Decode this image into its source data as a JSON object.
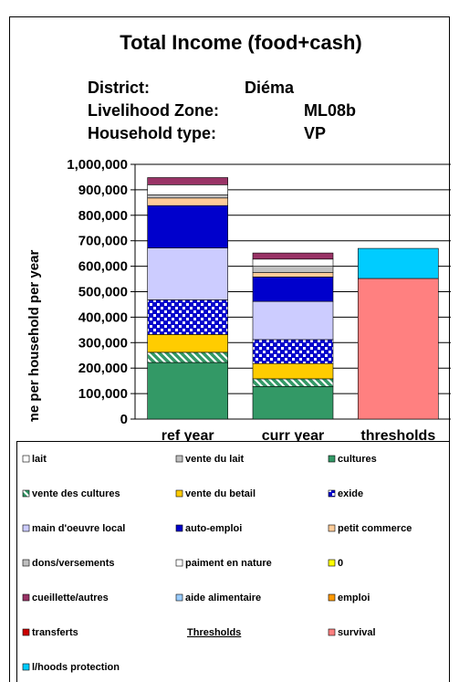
{
  "chart_data": {
    "type": "stacked_bar",
    "title": "Total Income (food+cash)",
    "info": [
      {
        "label": "District:",
        "value": "Diéma"
      },
      {
        "label": "Livelihood Zone:",
        "value": "ML08b"
      },
      {
        "label": "Household type:",
        "value": "VP"
      }
    ],
    "y_label": "Income per household per year",
    "categories": [
      "ref year",
      "curr year",
      "thresholds"
    ],
    "ylim": [
      0,
      1000000
    ],
    "yticks": [
      0,
      {
        "value": 100000,
        "label": "100,000"
      },
      {
        "value": 200000,
        "label": "200,000"
      },
      {
        "value": 300000,
        "label": "300,000"
      },
      {
        "value": 400000,
        "label": "400,000"
      },
      {
        "value": 500000,
        "label": "500,000"
      },
      {
        "value": 600000,
        "label": "600,000"
      },
      {
        "value": 700000,
        "label": "700,000"
      },
      {
        "value": 800000,
        "label": "800,000"
      },
      {
        "value": 900000,
        "label": "900,000"
      },
      {
        "value": 1000000,
        "label": "1,000,000"
      }
    ],
    "grid": true,
    "legend_heading": "Thresholds",
    "series": [
      {
        "name": "lait",
        "color": "#ffffff",
        "values": [
          0,
          0,
          0
        ]
      },
      {
        "name": "vente du lait",
        "color": "#c0c0c0",
        "values": [
          0,
          0,
          0
        ]
      },
      {
        "name": "cultures",
        "color": "#339966",
        "values": [
          222000,
          128000,
          0
        ]
      },
      {
        "name": "vente des cultures",
        "color": "#339966",
        "pattern": "diagonal",
        "values": [
          40000,
          30000,
          0
        ]
      },
      {
        "name": "vente du betail",
        "color": "#ffcc00",
        "values": [
          70000,
          60000,
          0
        ]
      },
      {
        "name": "exide",
        "color": "#0000cc",
        "pattern": "grid",
        "values": [
          136000,
          94000,
          0
        ]
      },
      {
        "name": "main d'oeuvre local",
        "color": "#ccccff",
        "values": [
          204000,
          150000,
          0
        ]
      },
      {
        "name": "auto-emploi",
        "color": "#0000cc",
        "values": [
          166000,
          96000,
          0
        ]
      },
      {
        "name": "petit commerce",
        "color": "#ffcc99",
        "values": [
          30000,
          17000,
          0
        ]
      },
      {
        "name": "dons/versements",
        "color": "#c0c0c0",
        "values": [
          12000,
          25000,
          0
        ]
      },
      {
        "name": "paiment en nature",
        "color": "#ffffff",
        "values": [
          40000,
          28000,
          0
        ]
      },
      {
        "name": "0",
        "color": "#ffff00",
        "values": [
          0,
          0,
          0
        ]
      },
      {
        "name": "cueillette/autres",
        "color": "#993366",
        "values": [
          28000,
          24000,
          0
        ]
      },
      {
        "name": "aide alimentaire",
        "color": "#99ccff",
        "values": [
          0,
          0,
          0
        ]
      },
      {
        "name": "emploi",
        "color": "#ff9900",
        "values": [
          0,
          0,
          0
        ]
      },
      {
        "name": "transferts",
        "color": "#cc0000",
        "values": [
          0,
          0,
          0
        ]
      },
      {
        "name": "survival",
        "color": "#ff8080",
        "values": [
          0,
          0,
          552000
        ]
      },
      {
        "name": "l/hoods protection",
        "color": "#00ccff",
        "values": [
          0,
          0,
          118000
        ]
      }
    ]
  }
}
